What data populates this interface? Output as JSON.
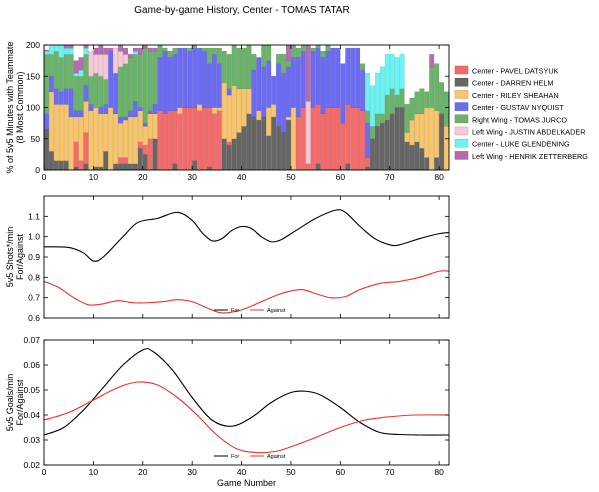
{
  "title": "Game-by-game History, Center - TOMAS TATAR",
  "chart_data": [
    {
      "type": "bar",
      "stacked": true,
      "ylabel_line1": "% of 5v5 Minutes with Teammate",
      "ylabel_line2": "(8 Most Common)",
      "xlim": [
        0,
        82
      ],
      "ylim": [
        0,
        200
      ],
      "yticks": [
        0,
        50,
        100,
        150,
        200
      ],
      "legend_position": "right",
      "series": [
        {
          "name": "Center - PAVEL DATSYUK",
          "color": "#f36b6b",
          "stroke": "#c85858"
        },
        {
          "name": "Center - DARREN HELM",
          "color": "#666666",
          "stroke": "#555555"
        },
        {
          "name": "Center - RILEY SHEAHAN",
          "color": "#f7c56b",
          "stroke": "#c8a058"
        },
        {
          "name": "Center - GUSTAV NYQUIST",
          "color": "#6b6bf3",
          "stroke": "#5858c8"
        },
        {
          "name": "Right Wing - TOMAS JURCO",
          "color": "#6bb36b",
          "stroke": "#589358"
        },
        {
          "name": "Left Wing - JUSTIN ABDELKADER",
          "color": "#f7c8d6",
          "stroke": "#caa3ae"
        },
        {
          "name": "Center - LUKE GLENDENING",
          "color": "#6bf3f3",
          "stroke": "#58c8c8"
        },
        {
          "name": "Left Wing - HENRIK ZETTERBERG",
          "color": "#b36bb3",
          "stroke": "#935893"
        }
      ],
      "segment_order": [
        1,
        0,
        2,
        3,
        4,
        5,
        6,
        7
      ],
      "values_by_game": [
        [
          0,
          65,
          0,
          25,
          95,
          0,
          5,
          2
        ],
        [
          0,
          30,
          95,
          25,
          35,
          0,
          15,
          0
        ],
        [
          0,
          15,
          90,
          25,
          60,
          0,
          10,
          0
        ],
        [
          0,
          15,
          90,
          20,
          55,
          0,
          20,
          0
        ],
        [
          0,
          15,
          90,
          25,
          55,
          0,
          10,
          5
        ],
        [
          0,
          0,
          85,
          45,
          55,
          0,
          10,
          5
        ],
        [
          40,
          5,
          40,
          10,
          55,
          0,
          5,
          20
        ],
        [
          15,
          0,
          70,
          10,
          55,
          0,
          10,
          20
        ],
        [
          50,
          10,
          50,
          25,
          50,
          0,
          10,
          5
        ],
        [
          0,
          0,
          95,
          10,
          45,
          40,
          0,
          0
        ],
        [
          0,
          5,
          95,
          0,
          55,
          30,
          0,
          10
        ],
        [
          0,
          5,
          85,
          10,
          50,
          35,
          0,
          15
        ],
        [
          0,
          30,
          60,
          15,
          40,
          40,
          0,
          10
        ],
        [
          0,
          0,
          100,
          90,
          0,
          0,
          0,
          5
        ],
        [
          0,
          10,
          80,
          65,
          0,
          40,
          0,
          0
        ],
        [
          10,
          10,
          55,
          10,
          80,
          25,
          0,
          10
        ],
        [
          10,
          10,
          60,
          5,
          85,
          15,
          0,
          10
        ],
        [
          0,
          10,
          75,
          10,
          85,
          0,
          0,
          5
        ],
        [
          0,
          10,
          75,
          25,
          75,
          0,
          5,
          5
        ],
        [
          10,
          35,
          50,
          5,
          85,
          0,
          0,
          10
        ],
        [
          15,
          25,
          30,
          5,
          120,
          0,
          0,
          5
        ],
        [
          50,
          0,
          40,
          5,
          95,
          0,
          0,
          5
        ],
        [
          0,
          50,
          40,
          15,
          85,
          0,
          0,
          5
        ],
        [
          95,
          0,
          0,
          85,
          20,
          0,
          0,
          0
        ],
        [
          90,
          0,
          0,
          100,
          5,
          0,
          0,
          0
        ],
        [
          95,
          0,
          0,
          85,
          10,
          0,
          0,
          0
        ],
        [
          85,
          10,
          0,
          90,
          10,
          0,
          0,
          0
        ],
        [
          90,
          0,
          10,
          95,
          0,
          0,
          0,
          0
        ],
        [
          100,
          0,
          0,
          95,
          0,
          0,
          0,
          0
        ],
        [
          100,
          0,
          0,
          90,
          5,
          0,
          0,
          0
        ],
        [
          85,
          15,
          0,
          95,
          5,
          0,
          0,
          0
        ],
        [
          95,
          0,
          10,
          90,
          0,
          0,
          0,
          0
        ],
        [
          100,
          0,
          0,
          90,
          5,
          0,
          0,
          0
        ],
        [
          95,
          5,
          0,
          70,
          25,
          0,
          0,
          0
        ],
        [
          90,
          0,
          10,
          85,
          10,
          0,
          0,
          0
        ],
        [
          95,
          0,
          5,
          70,
          25,
          0,
          0,
          0
        ],
        [
          0,
          50,
          90,
          0,
          50,
          0,
          0,
          0
        ],
        [
          5,
          40,
          75,
          10,
          55,
          0,
          0,
          0
        ],
        [
          0,
          50,
          85,
          0,
          65,
          0,
          0,
          0
        ],
        [
          0,
          60,
          70,
          0,
          65,
          0,
          0,
          0
        ],
        [
          0,
          70,
          60,
          0,
          65,
          0,
          0,
          0
        ],
        [
          0,
          90,
          40,
          0,
          70,
          0,
          0,
          0
        ],
        [
          0,
          85,
          0,
          75,
          25,
          0,
          0,
          0
        ],
        [
          0,
          80,
          15,
          85,
          0,
          0,
          0,
          0
        ],
        [
          0,
          85,
          0,
          80,
          35,
          0,
          0,
          0
        ],
        [
          0,
          55,
          45,
          75,
          25,
          0,
          0,
          0
        ],
        [
          0,
          85,
          20,
          45,
          0,
          0,
          0,
          0
        ],
        [
          0,
          70,
          0,
          100,
          15,
          0,
          0,
          0
        ],
        [
          0,
          60,
          0,
          95,
          30,
          0,
          0,
          0
        ],
        [
          0,
          80,
          5,
          80,
          10,
          0,
          0,
          25
        ],
        [
          0,
          0,
          100,
          80,
          20,
          0,
          0,
          0
        ],
        [
          85,
          0,
          0,
          95,
          15,
          0,
          0,
          0
        ],
        [
          100,
          0,
          0,
          90,
          10,
          0,
          0,
          0
        ],
        [
          10,
          0,
          0,
          0,
          0,
          100,
          0,
          90
        ],
        [
          100,
          0,
          0,
          90,
          5,
          0,
          0,
          0
        ],
        [
          95,
          10,
          0,
          90,
          5,
          0,
          0,
          0
        ],
        [
          90,
          0,
          0,
          90,
          10,
          0,
          0,
          0
        ],
        [
          100,
          0,
          0,
          90,
          10,
          0,
          0,
          0
        ],
        [
          100,
          0,
          0,
          95,
          0,
          0,
          0,
          0
        ],
        [
          100,
          0,
          0,
          95,
          0,
          0,
          0,
          0
        ],
        [
          75,
          0,
          0,
          95,
          0,
          0,
          0,
          0
        ],
        [
          95,
          10,
          0,
          90,
          0,
          0,
          0,
          0
        ],
        [
          100,
          0,
          0,
          95,
          0,
          0,
          0,
          0
        ],
        [
          100,
          0,
          0,
          95,
          0,
          0,
          0,
          0
        ],
        [
          95,
          0,
          0,
          65,
          10,
          0,
          0,
          0
        ],
        [
          15,
          5,
          0,
          55,
          20,
          0,
          60,
          0
        ],
        [
          0,
          50,
          0,
          0,
          20,
          0,
          65,
          0
        ],
        [
          0,
          70,
          0,
          0,
          20,
          0,
          65,
          0
        ],
        [
          0,
          75,
          0,
          0,
          15,
          0,
          75,
          0
        ],
        [
          0,
          80,
          0,
          0,
          40,
          0,
          65,
          0
        ],
        [
          0,
          90,
          0,
          0,
          40,
          0,
          55,
          0
        ],
        [
          0,
          100,
          0,
          0,
          20,
          0,
          60,
          0
        ],
        [
          0,
          100,
          0,
          0,
          30,
          0,
          55,
          0
        ],
        [
          0,
          45,
          15,
          0,
          45,
          0,
          0,
          0
        ],
        [
          0,
          40,
          40,
          0,
          35,
          0,
          0,
          0
        ],
        [
          0,
          45,
          45,
          0,
          35,
          0,
          0,
          0
        ],
        [
          0,
          35,
          55,
          0,
          40,
          0,
          0,
          0
        ],
        [
          0,
          20,
          80,
          0,
          25,
          0,
          0,
          0
        ],
        [
          0,
          0,
          100,
          0,
          65,
          0,
          0,
          20
        ],
        [
          0,
          20,
          75,
          0,
          75,
          0,
          0,
          0
        ],
        [
          0,
          90,
          0,
          0,
          50,
          0,
          0,
          0
        ],
        [
          0,
          0,
          70,
          0,
          55,
          0,
          0,
          0
        ]
      ]
    },
    {
      "type": "line",
      "ylabel_line1": "5v5 Shots*/min",
      "ylabel_line2": "For/Against",
      "xlim": [
        0,
        82
      ],
      "ylim": [
        0.6,
        1.2
      ],
      "yticks": [
        "0.6",
        "0.7",
        "0.8",
        "0.9",
        "1.0",
        "1.1"
      ],
      "legend_position": "lower center",
      "series": [
        {
          "name": "For",
          "color": "#000000",
          "points": [
            [
              0,
              0.95
            ],
            [
              5,
              0.947
            ],
            [
              8,
              0.92
            ],
            [
              10,
              0.88
            ],
            [
              12,
              0.9
            ],
            [
              16,
              1.0
            ],
            [
              19,
              1.07
            ],
            [
              23,
              1.09
            ],
            [
              27,
              1.12
            ],
            [
              30,
              1.08
            ],
            [
              32,
              1.02
            ],
            [
              34,
              0.98
            ],
            [
              36,
              0.99
            ],
            [
              38,
              1.03
            ],
            [
              40,
              1.05
            ],
            [
              42,
              1.04
            ],
            [
              44,
              1.0
            ],
            [
              46,
              0.975
            ],
            [
              48,
              0.985
            ],
            [
              51,
              1.03
            ],
            [
              55,
              1.09
            ],
            [
              59,
              1.13
            ],
            [
              61,
              1.12
            ],
            [
              64,
              1.05
            ],
            [
              67,
              0.99
            ],
            [
              70,
              0.96
            ],
            [
              72,
              0.96
            ],
            [
              76,
              0.99
            ],
            [
              80,
              1.015
            ],
            [
              82,
              1.02
            ]
          ]
        },
        {
          "name": "Against",
          "color": "#e8322b",
          "points": [
            [
              0,
              0.78
            ],
            [
              3,
              0.75
            ],
            [
              6,
              0.7
            ],
            [
              9,
              0.665
            ],
            [
              12,
              0.67
            ],
            [
              15,
              0.685
            ],
            [
              18,
              0.675
            ],
            [
              21,
              0.675
            ],
            [
              24,
              0.68
            ],
            [
              27,
              0.69
            ],
            [
              30,
              0.68
            ],
            [
              33,
              0.65
            ],
            [
              36,
              0.625
            ],
            [
              40,
              0.64
            ],
            [
              44,
              0.68
            ],
            [
              48,
              0.72
            ],
            [
              52,
              0.74
            ],
            [
              55,
              0.72
            ],
            [
              58,
              0.7
            ],
            [
              61,
              0.705
            ],
            [
              64,
              0.74
            ],
            [
              68,
              0.77
            ],
            [
              72,
              0.78
            ],
            [
              76,
              0.8
            ],
            [
              80,
              0.83
            ],
            [
              82,
              0.83
            ]
          ]
        }
      ]
    },
    {
      "type": "line",
      "ylabel_line1": "5v5 Goals/min",
      "ylabel_line2": "For/Against",
      "xlabel": "Game Number",
      "xlim": [
        0,
        82
      ],
      "ylim": [
        0.02,
        0.07
      ],
      "yticks": [
        "0.02",
        "0.03",
        "0.04",
        "0.05",
        "0.06",
        "0.07"
      ],
      "xticks": [
        0,
        10,
        20,
        30,
        40,
        50,
        60,
        70,
        80
      ],
      "legend_position": "lower center",
      "series": [
        {
          "name": "For",
          "color": "#000000",
          "points": [
            [
              0,
              0.032
            ],
            [
              4,
              0.035
            ],
            [
              8,
              0.042
            ],
            [
              12,
              0.051
            ],
            [
              16,
              0.06
            ],
            [
              20,
              0.066
            ],
            [
              22,
              0.0655
            ],
            [
              26,
              0.058
            ],
            [
              30,
              0.047
            ],
            [
              34,
              0.038
            ],
            [
              38,
              0.0355
            ],
            [
              42,
              0.039
            ],
            [
              46,
              0.045
            ],
            [
              50,
              0.049
            ],
            [
              53,
              0.0495
            ],
            [
              56,
              0.048
            ],
            [
              60,
              0.043
            ],
            [
              64,
              0.037
            ],
            [
              68,
              0.033
            ],
            [
              72,
              0.0322
            ],
            [
              76,
              0.032
            ],
            [
              82,
              0.032
            ]
          ]
        },
        {
          "name": "Against",
          "color": "#e8322b",
          "points": [
            [
              0,
              0.038
            ],
            [
              5,
              0.041
            ],
            [
              10,
              0.046
            ],
            [
              15,
              0.051
            ],
            [
              19,
              0.0532
            ],
            [
              23,
              0.052
            ],
            [
              27,
              0.047
            ],
            [
              31,
              0.04
            ],
            [
              35,
              0.032
            ],
            [
              39,
              0.0265
            ],
            [
              43,
              0.025
            ],
            [
              47,
              0.0255
            ],
            [
              51,
              0.028
            ],
            [
              55,
              0.031
            ],
            [
              60,
              0.035
            ],
            [
              65,
              0.038
            ],
            [
              70,
              0.0393
            ],
            [
              75,
              0.04
            ],
            [
              82,
              0.04
            ]
          ]
        }
      ]
    }
  ]
}
